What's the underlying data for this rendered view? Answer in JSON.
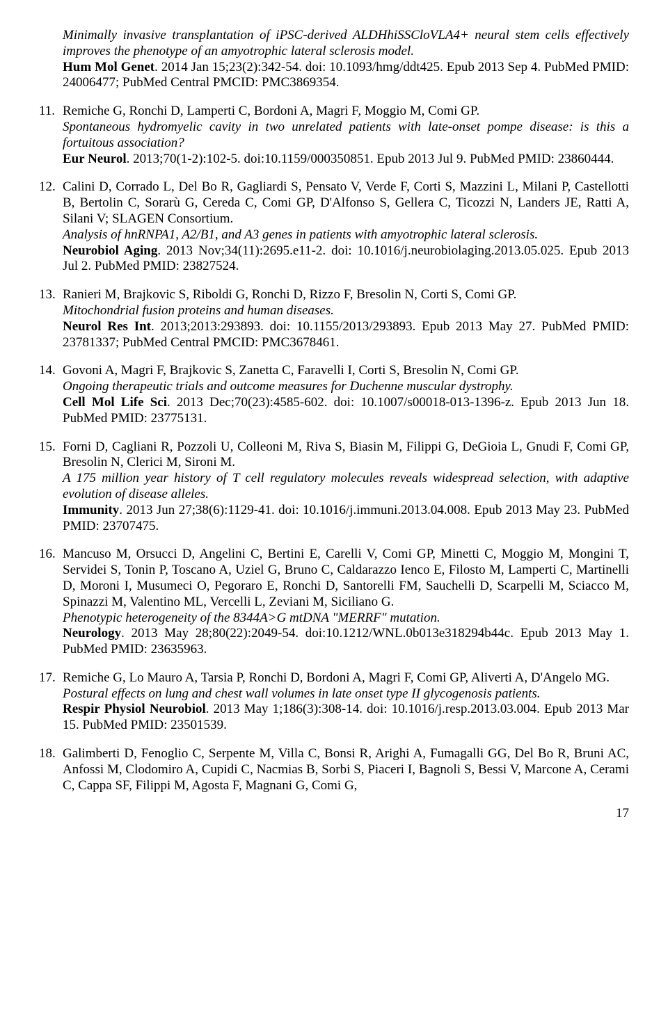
{
  "continuation": {
    "title_italic": "Minimally invasive transplantation of iPSC-derived ALDHhiSSCloVLA4+ neural stem cells effectively improves the phenotype of an amyotrophic lateral sclerosis model.",
    "journal_bold": "Hum Mol Genet",
    "rest": ". 2014 Jan 15;23(2):342-54. doi: 10.1093/hmg/ddt425. Epub 2013 Sep 4. PubMed PMID: 24006477; PubMed Central PMCID: PMC3869354."
  },
  "refs": [
    {
      "num": "11.",
      "authors": "Remiche G, Ronchi D, Lamperti C, Bordoni A, Magri F, Moggio M, Comi GP.",
      "title_italic": "Spontaneous hydromyelic cavity in two unrelated patients with late-onset pompe disease: is this a fortuitous association?",
      "journal_bold": "Eur Neurol",
      "rest": ". 2013;70(1-2):102-5. doi:10.1159/000350851. Epub 2013 Jul 9. PubMed PMID: 23860444."
    },
    {
      "num": "12.",
      "authors": "Calini D, Corrado L, Del Bo R, Gagliardi S, Pensato V, Verde F, Corti S, Mazzini L, Milani P, Castellotti B, Bertolin C, Sorarù G, Cereda C, Comi GP, D'Alfonso S, Gellera C, Ticozzi N, Landers JE, Ratti A, Silani V; SLAGEN Consortium.",
      "title_italic": "Analysis of hnRNPA1, A2/B1, and A3 genes in patients with amyotrophic lateral sclerosis.",
      "journal_bold": "Neurobiol Aging",
      "rest": ". 2013 Nov;34(11):2695.e11-2. doi: 10.1016/j.neurobiolaging.2013.05.025. Epub 2013 Jul 2. PubMed PMID: 23827524."
    },
    {
      "num": "13.",
      "authors": "Ranieri M, Brajkovic S, Riboldi G, Ronchi D, Rizzo F, Bresolin N, Corti S, Comi GP.",
      "title_italic": "Mitochondrial fusion proteins and human diseases.",
      "journal_bold": "Neurol Res Int",
      "rest": ". 2013;2013:293893. doi: 10.1155/2013/293893. Epub 2013 May 27. PubMed PMID: 23781337; PubMed Central PMCID: PMC3678461."
    },
    {
      "num": "14.",
      "authors": "Govoni A, Magri F, Brajkovic S, Zanetta C, Faravelli I, Corti S, Bresolin N, Comi GP.",
      "title_italic": "Ongoing therapeutic trials and outcome measures for Duchenne muscular dystrophy.",
      "journal_bold": "Cell Mol Life Sci",
      "rest": ". 2013 Dec;70(23):4585-602. doi: 10.1007/s00018-013-1396-z. Epub 2013 Jun 18. PubMed PMID: 23775131."
    },
    {
      "num": "15.",
      "authors": "Forni D, Cagliani R, Pozzoli U, Colleoni M, Riva S, Biasin M, Filippi G, DeGioia L, Gnudi F, Comi GP, Bresolin N, Clerici M, Sironi M.",
      "title_italic": "A 175 million year history of T cell regulatory molecules reveals widespread selection, with adaptive evolution of disease alleles.",
      "journal_bold": "Immunity",
      "rest": ". 2013 Jun 27;38(6):1129-41. doi: 10.1016/j.immuni.2013.04.008. Epub 2013 May 23. PubMed PMID: 23707475."
    },
    {
      "num": "16.",
      "authors": "Mancuso M, Orsucci D, Angelini C, Bertini E, Carelli V, Comi GP, Minetti C, Moggio M, Mongini T, Servidei S, Tonin P, Toscano A, Uziel G, Bruno C, Caldarazzo Ienco E, Filosto M, Lamperti C, Martinelli D, Moroni I, Musumeci O, Pegoraro E, Ronchi D, Santorelli FM, Sauchelli D, Scarpelli M, Sciacco M, Spinazzi M, Valentino ML, Vercelli L, Zeviani M, Siciliano G.",
      "title_italic": "Phenotypic heterogeneity of the 8344A>G mtDNA \"MERRF\" mutation.",
      "journal_bold": "Neurology",
      "rest": ". 2013 May 28;80(22):2049-54. doi:10.1212/WNL.0b013e318294b44c. Epub 2013 May 1. PubMed PMID: 23635963."
    },
    {
      "num": "17.",
      "authors": "Remiche G, Lo Mauro A, Tarsia P, Ronchi D, Bordoni A, Magri F, Comi GP, Aliverti A, D'Angelo MG.",
      "title_italic": "Postural effects on lung and chest wall volumes in late onset type II glycogenosis patients.",
      "journal_bold": "Respir Physiol Neurobiol",
      "rest": ". 2013 May 1;186(3):308-14. doi: 10.1016/j.resp.2013.03.004. Epub 2013 Mar 15. PubMed PMID: 23501539."
    },
    {
      "num": "18.",
      "authors": "Galimberti D, Fenoglio C, Serpente M, Villa C, Bonsi R, Arighi A, Fumagalli GG, Del Bo R, Bruni AC, Anfossi M, Clodomiro A, Cupidi C, Nacmias B, Sorbi S, Piaceri I, Bagnoli S, Bessi V, Marcone A, Cerami C, Cappa SF, Filippi M, Agosta F, Magnani G, Comi G,",
      "title_italic": "",
      "journal_bold": "",
      "rest": ""
    }
  ],
  "pagenum": "17"
}
